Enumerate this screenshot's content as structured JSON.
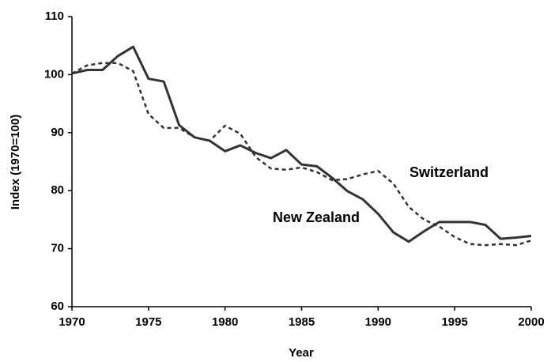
{
  "chart_data": {
    "type": "line",
    "x_label": "Year",
    "y_label": "Index (1970=100)",
    "x": [
      1970,
      1971,
      1972,
      1973,
      1974,
      1975,
      1976,
      1977,
      1978,
      1979,
      1980,
      1981,
      1982,
      1983,
      1984,
      1985,
      1986,
      1987,
      1988,
      1989,
      1990,
      1991,
      1992,
      1993,
      1994,
      1995,
      1996,
      1997,
      1998,
      1999,
      2000
    ],
    "series": [
      {
        "name": "New Zealand",
        "color": "#333333",
        "line_style": "solid",
        "values": [
          100.2,
          100.8,
          100.8,
          103.2,
          104.8,
          99.3,
          98.8,
          91.3,
          89.2,
          88.6,
          86.8,
          87.8,
          86.5,
          85.6,
          87.0,
          84.5,
          84.2,
          82.2,
          79.9,
          78.5,
          76.0,
          72.8,
          71.2,
          73.0,
          74.6,
          74.6,
          74.6,
          74.1,
          71.7,
          71.9,
          72.2
        ]
      },
      {
        "name": "Switzerland",
        "color": "#333333",
        "line_style": "dashed",
        "values": [
          100.2,
          101.6,
          102.0,
          102.0,
          100.6,
          93.2,
          90.8,
          90.8,
          89.2,
          88.6,
          91.2,
          89.8,
          85.8,
          83.8,
          83.6,
          84.0,
          83.2,
          81.8,
          82.0,
          82.8,
          83.4,
          81.2,
          77.2,
          75.0,
          73.8,
          72.0,
          70.8,
          70.6,
          70.8,
          70.6,
          71.4
        ]
      }
    ],
    "xlim": [
      1970,
      2000
    ],
    "xticks": [
      1970,
      1975,
      1980,
      1985,
      1990,
      1995,
      2000
    ],
    "ylim": [
      60,
      110
    ],
    "yticks": [
      60,
      70,
      80,
      90,
      100,
      110
    ],
    "grid": false
  }
}
